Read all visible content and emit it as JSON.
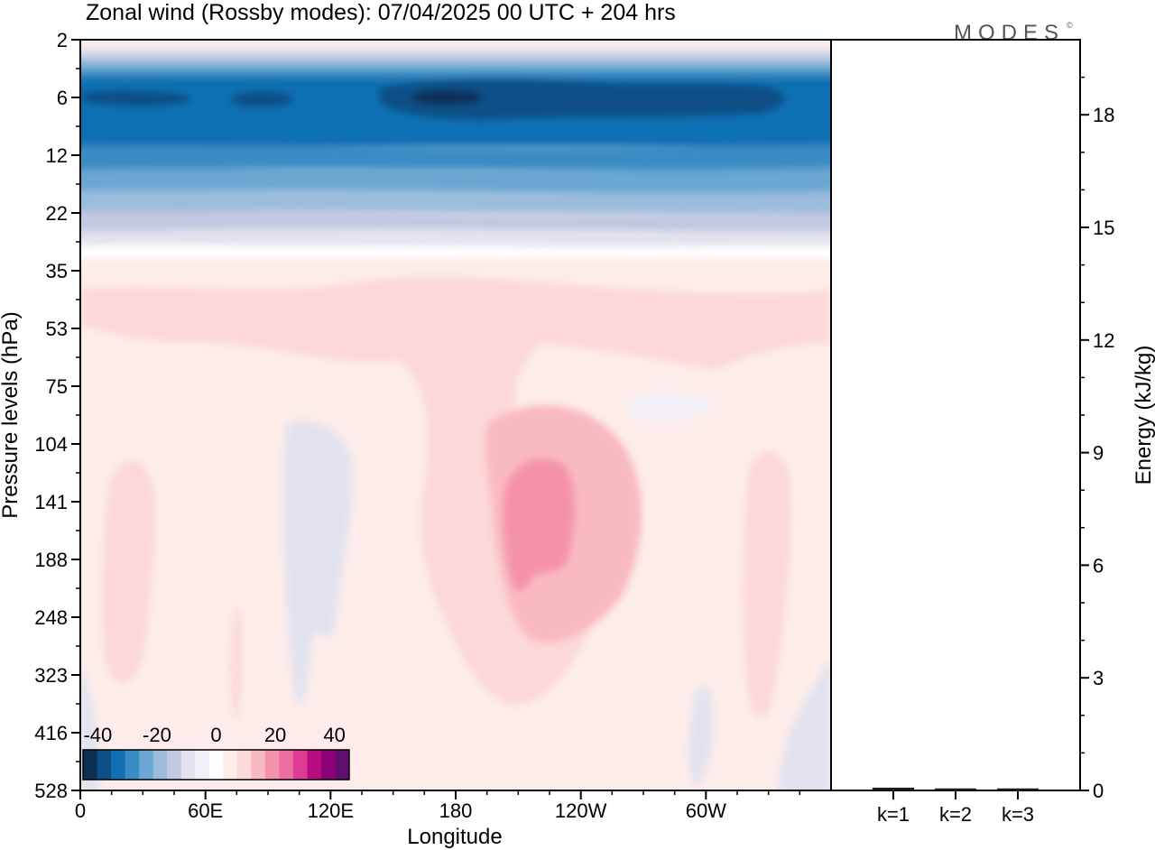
{
  "chart_data": [
    {
      "type": "heatmap",
      "title": "Zonal wind (Rossby modes):  07/04/2025  00 UTC  + 204 hrs",
      "xlabel": "Longitude",
      "ylabel": "Pressure levels (hPa)",
      "x_ticks": [
        {
          "label": "0",
          "lon": 0
        },
        {
          "label": "60E",
          "lon": 60
        },
        {
          "label": "120E",
          "lon": 120
        },
        {
          "label": "180",
          "lon": 180
        },
        {
          "label": "120W",
          "lon": 240
        },
        {
          "label": "60W",
          "lon": 300
        }
      ],
      "xlim": [
        0,
        360
      ],
      "y_levels": [
        "2",
        "6",
        "12",
        "22",
        "35",
        "53",
        "75",
        "104",
        "141",
        "188",
        "248",
        "323",
        "416",
        "528"
      ],
      "colorbar": {
        "tick_labels": [
          "-40",
          "-20",
          "0",
          "20",
          "40"
        ],
        "range": [
          -45,
          45
        ],
        "colors": [
          "#0b2f55",
          "#0e4f86",
          "#1170b2",
          "#3a8cc4",
          "#6aa7d2",
          "#9bbcdc",
          "#c2c7e2",
          "#e2e2ee",
          "#f2f0f6",
          "#ffffff",
          "#fdecea",
          "#fcd8d8",
          "#f9b9c1",
          "#f592ab",
          "#ee6ea3",
          "#dd3c95",
          "#b70d80",
          "#8c007a",
          "#5f0e6b"
        ]
      },
      "features": [
        {
          "label": "strong easterly core near 6 hPa",
          "lon": 190,
          "level": "6",
          "value": -35
        },
        {
          "label": "westerly maximum",
          "lon": 217,
          "level": "141",
          "value": 17
        }
      ]
    },
    {
      "type": "bar",
      "categories": [
        "k=1",
        "k=2",
        "k=3"
      ],
      "values": [
        0.05,
        0.03,
        0.03
      ],
      "ylabel": "Energy (kJ/kg)",
      "ylim": [
        0,
        20
      ],
      "y_ticks": [
        "0",
        "3",
        "6",
        "9",
        "12",
        "15",
        "18"
      ]
    }
  ],
  "logo_text": "MODES",
  "logo_mark": "©"
}
